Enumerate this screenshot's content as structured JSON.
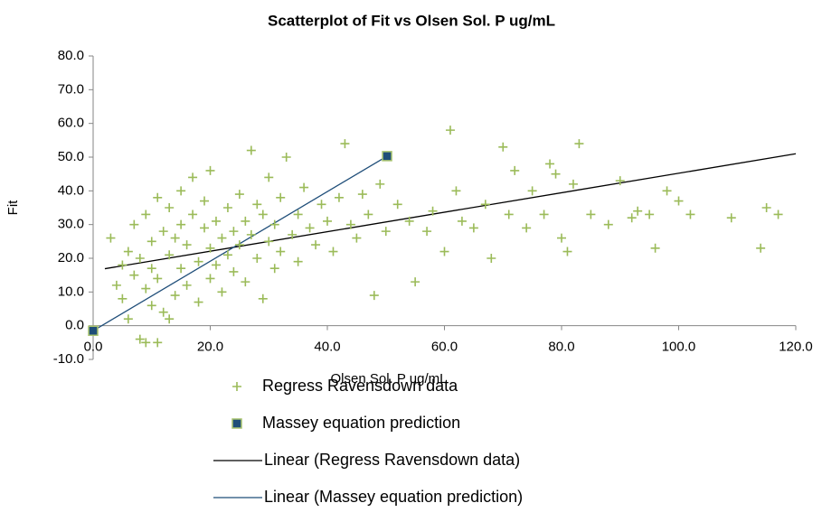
{
  "chart_data": {
    "type": "scatter",
    "title": "Scatterplot of Fit vs Olsen Sol. P ug/mL",
    "x_label": "Olsen Sol. P ug/mL",
    "y_label": "Fit",
    "xlim": [
      0,
      120
    ],
    "ylim": [
      -10,
      80
    ],
    "xticks": [
      {
        "value": 0,
        "label": "0.0"
      },
      {
        "value": 20,
        "label": "20.0"
      },
      {
        "value": 40,
        "label": "40.0"
      },
      {
        "value": 60,
        "label": "60.0"
      },
      {
        "value": 80,
        "label": "80.0"
      },
      {
        "value": 100,
        "label": "100.0"
      },
      {
        "value": 120,
        "label": "120.0"
      }
    ],
    "yticks": [
      {
        "value": -10,
        "label": "-10.0"
      },
      {
        "value": 0,
        "label": "0.0"
      },
      {
        "value": 10,
        "label": "10.0"
      },
      {
        "value": 20,
        "label": "20.0"
      },
      {
        "value": 30,
        "label": "30.0"
      },
      {
        "value": 40,
        "label": "40.0"
      },
      {
        "value": 50,
        "label": "50.0"
      },
      {
        "value": 60,
        "label": "60.0"
      },
      {
        "value": 70,
        "label": "70.0"
      },
      {
        "value": 80,
        "label": "80.0"
      }
    ],
    "grid": false,
    "series": [
      {
        "name": "Regress Ravensdown data",
        "color": "#9bbb59",
        "marker": "plus",
        "x": [
          3,
          4,
          5,
          5,
          6,
          6,
          7,
          7,
          8,
          8,
          9,
          9,
          10,
          10,
          10,
          11,
          11,
          12,
          12,
          13,
          13,
          14,
          14,
          15,
          15,
          15,
          16,
          16,
          17,
          17,
          18,
          18,
          19,
          19,
          20,
          20,
          20,
          21,
          21,
          22,
          22,
          23,
          23,
          24,
          24,
          25,
          25,
          26,
          26,
          27,
          27,
          28,
          28,
          29,
          29,
          30,
          30,
          31,
          31,
          32,
          32,
          33,
          34,
          35,
          35,
          36,
          37,
          38,
          39,
          40,
          41,
          42,
          43,
          44,
          45,
          46,
          47,
          48,
          49,
          50,
          52,
          54,
          55,
          57,
          58,
          60,
          61,
          62,
          63,
          65,
          67,
          68,
          70,
          71,
          72,
          74,
          75,
          77,
          78,
          79,
          80,
          81,
          82,
          83,
          85,
          88,
          90,
          92,
          93,
          95,
          96,
          98,
          100,
          102,
          109,
          114,
          115,
          117,
          9,
          11,
          13
        ],
        "values": [
          26,
          12,
          18,
          8,
          22,
          2,
          15,
          30,
          -4,
          20,
          11,
          33,
          25,
          6,
          17,
          38,
          14,
          28,
          4,
          21,
          35,
          9,
          26,
          40,
          17,
          30,
          12,
          24,
          44,
          33,
          19,
          7,
          29,
          37,
          23,
          14,
          46,
          31,
          18,
          26,
          10,
          35,
          21,
          28,
          16,
          39,
          24,
          13,
          31,
          52,
          27,
          20,
          36,
          33,
          8,
          25,
          44,
          30,
          17,
          38,
          22,
          50,
          27,
          33,
          19,
          41,
          29,
          24,
          36,
          31,
          22,
          38,
          54,
          30,
          26,
          39,
          33,
          9,
          42,
          28,
          36,
          31,
          13,
          28,
          34,
          22,
          58,
          40,
          31,
          29,
          36,
          20,
          53,
          33,
          46,
          29,
          40,
          33,
          48,
          45,
          26,
          22,
          42,
          54,
          33,
          30,
          43,
          32,
          34,
          33,
          23,
          40,
          37,
          33,
          32,
          23,
          35,
          33,
          -5,
          -5,
          2
        ]
      },
      {
        "name": "Massey equation prediction",
        "color": "#1f4e79",
        "marker": "square",
        "x": [
          0,
          50.2
        ],
        "values": [
          -1.5,
          50.3
        ]
      }
    ],
    "trendlines": [
      {
        "name": "Linear (Regress Ravensdown data)",
        "color": "#000000",
        "x": [
          2,
          120
        ],
        "values": [
          16.9,
          51.0
        ]
      },
      {
        "name": "Linear (Massey equation prediction)",
        "color": "#1f4e79",
        "x": [
          0,
          50.2
        ],
        "values": [
          -1.5,
          50.3
        ]
      }
    ]
  }
}
